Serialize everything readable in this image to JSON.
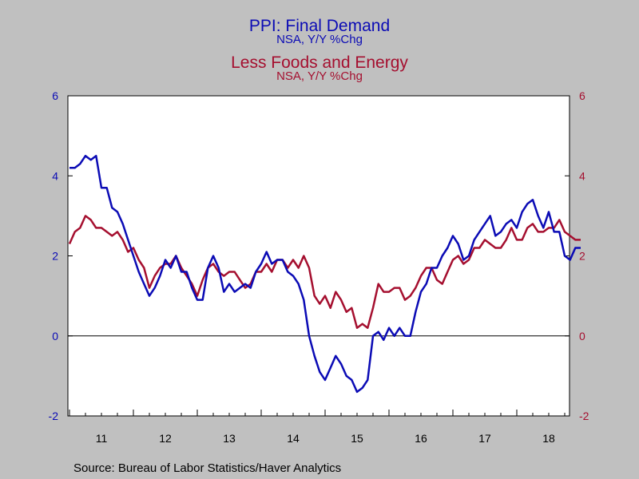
{
  "titles": {
    "line1": "PPI: Final Demand",
    "line1_sub": "NSA, Y/Y %Chg",
    "line2": "Less Foods and Energy",
    "line2_sub": "NSA, Y/Y %Chg"
  },
  "source": "Source:  Bureau of Labor Statistics/Haver Analytics",
  "colors": {
    "series1": "#0b0bb5",
    "series2": "#a50f2f",
    "plot_bg": "#ffffff",
    "page_bg": "#c0c0c0"
  },
  "chart_data": {
    "type": "line",
    "x_labels": [
      "11",
      "12",
      "13",
      "14",
      "15",
      "16",
      "17",
      "18"
    ],
    "x_start": "2011-01",
    "frequency": "monthly",
    "ylim": [
      -2,
      6
    ],
    "yticks_left": [
      "6",
      "4",
      "2",
      "0",
      "-2"
    ],
    "yticks_right": [
      "6",
      "4",
      "2",
      "0",
      "-2"
    ],
    "zero_line": true,
    "series": [
      {
        "name": "PPI: Final Demand",
        "axis": "left",
        "values": [
          4.2,
          4.2,
          4.3,
          4.5,
          4.4,
          4.5,
          3.7,
          3.7,
          3.2,
          3.1,
          2.8,
          2.4,
          2.0,
          1.6,
          1.3,
          1.0,
          1.2,
          1.5,
          1.9,
          1.7,
          2.0,
          1.6,
          1.6,
          1.2,
          0.9,
          0.9,
          1.7,
          2.0,
          1.7,
          1.1,
          1.3,
          1.1,
          1.2,
          1.3,
          1.2,
          1.6,
          1.8,
          2.1,
          1.8,
          1.9,
          1.9,
          1.6,
          1.5,
          1.3,
          0.9,
          0.0,
          -0.5,
          -0.9,
          -1.1,
          -0.8,
          -0.5,
          -0.7,
          -1.0,
          -1.1,
          -1.4,
          -1.3,
          -1.1,
          0.0,
          0.1,
          -0.1,
          0.2,
          0.0,
          0.2,
          0.0,
          0.0,
          0.6,
          1.1,
          1.3,
          1.7,
          1.7,
          2.0,
          2.2,
          2.5,
          2.3,
          1.9,
          2.0,
          2.4,
          2.6,
          2.8,
          3.0,
          2.5,
          2.6,
          2.8,
          2.9,
          2.7,
          3.1,
          3.3,
          3.4,
          3.0,
          2.7,
          3.1,
          2.6,
          2.6,
          2.0,
          1.9,
          2.2,
          2.2
        ]
      },
      {
        "name": "Less Foods and Energy",
        "axis": "right",
        "values": [
          2.3,
          2.6,
          2.7,
          3.0,
          2.9,
          2.7,
          2.7,
          2.6,
          2.5,
          2.6,
          2.4,
          2.1,
          2.2,
          1.9,
          1.7,
          1.2,
          1.5,
          1.7,
          1.8,
          1.8,
          2.0,
          1.7,
          1.5,
          1.3,
          1.0,
          1.4,
          1.7,
          1.8,
          1.6,
          1.5,
          1.6,
          1.6,
          1.4,
          1.2,
          1.3,
          1.6,
          1.6,
          1.8,
          1.6,
          1.9,
          1.9,
          1.7,
          1.9,
          1.7,
          2.0,
          1.7,
          1.0,
          0.8,
          1.0,
          0.7,
          1.1,
          0.9,
          0.6,
          0.7,
          0.2,
          0.3,
          0.2,
          0.7,
          1.3,
          1.1,
          1.1,
          1.2,
          1.2,
          0.9,
          1.0,
          1.2,
          1.5,
          1.7,
          1.7,
          1.4,
          1.3,
          1.6,
          1.9,
          2.0,
          1.8,
          1.9,
          2.2,
          2.2,
          2.4,
          2.3,
          2.2,
          2.2,
          2.4,
          2.7,
          2.4,
          2.4,
          2.7,
          2.8,
          2.6,
          2.6,
          2.7,
          2.7,
          2.9,
          2.6,
          2.5,
          2.4,
          2.4
        ]
      }
    ]
  }
}
